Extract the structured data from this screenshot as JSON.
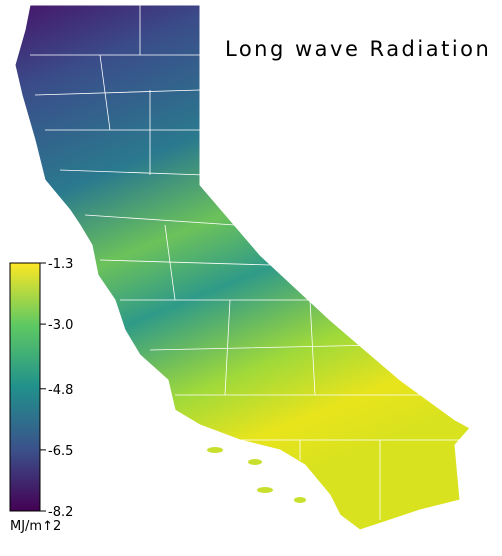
{
  "title": "Long wave Radiation",
  "colorbar": {
    "label": "MJ/m↑2",
    "lim": [
      -8.2,
      -1.3
    ],
    "ticks": [
      -1.3,
      {
        "value": -3,
        "label": "-3.0"
      },
      -4.8,
      -6.5,
      -8.2
    ]
  }
}
